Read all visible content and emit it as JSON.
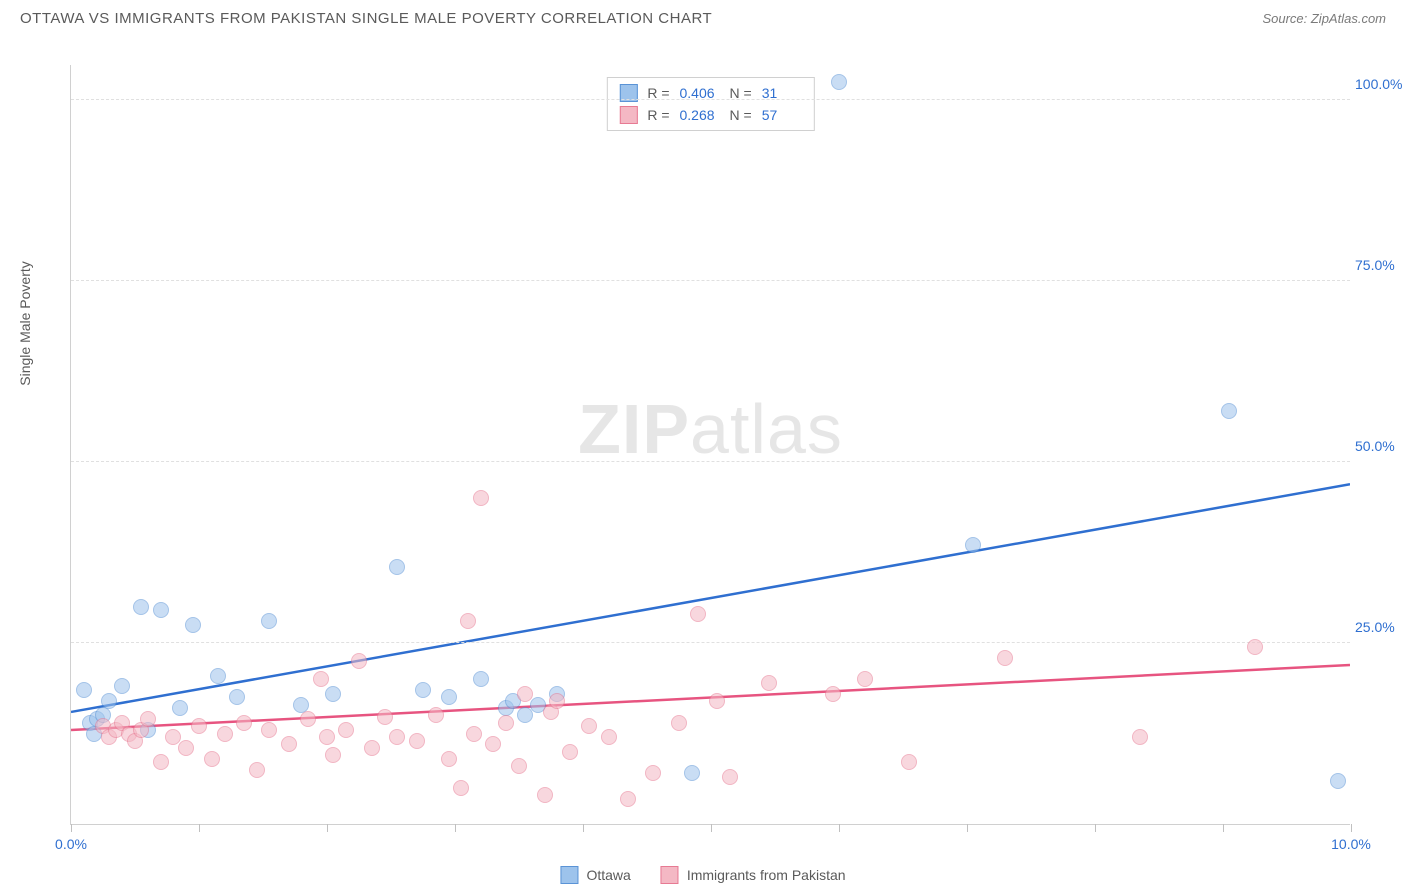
{
  "header": {
    "title": "OTTAWA VS IMMIGRANTS FROM PAKISTAN SINGLE MALE POVERTY CORRELATION CHART",
    "source": "Source: ZipAtlas.com"
  },
  "watermark": {
    "zip": "ZIP",
    "atlas": "atlas"
  },
  "chart": {
    "type": "scatter",
    "y_label": "Single Male Poverty",
    "xlim": [
      0,
      10
    ],
    "ylim": [
      0,
      105
    ],
    "xtick_positions": [
      0,
      1,
      2,
      3,
      4,
      5,
      6,
      7,
      8,
      9,
      10
    ],
    "xtick_labels": {
      "0": "0.0%",
      "10": "10.0%"
    },
    "xtick_label_color": "#2f6fd0",
    "ytick_positions": [
      25,
      50,
      75,
      100
    ],
    "ytick_labels": [
      "25.0%",
      "50.0%",
      "75.0%",
      "100.0%"
    ],
    "ytick_label_color": "#2f6fd0",
    "grid_color": "#e0e0e0",
    "background_color": "#ffffff",
    "point_radius": 8,
    "point_opacity": 0.55,
    "series": [
      {
        "name": "Ottawa",
        "fill_color": "#9dc3ec",
        "stroke_color": "#5a93d6",
        "line_color": "#2f6fd0",
        "r_value": "0.406",
        "n_value": "31",
        "trend": {
          "x1": 0,
          "y1": 15.5,
          "x2": 10,
          "y2": 47.0
        },
        "points": [
          [
            0.1,
            18.5
          ],
          [
            0.15,
            14.0
          ],
          [
            0.18,
            12.5
          ],
          [
            0.2,
            14.5
          ],
          [
            0.25,
            15.0
          ],
          [
            0.3,
            17.0
          ],
          [
            0.4,
            19.0
          ],
          [
            0.55,
            30.0
          ],
          [
            0.7,
            29.5
          ],
          [
            0.85,
            16.0
          ],
          [
            0.95,
            27.5
          ],
          [
            1.15,
            20.5
          ],
          [
            1.3,
            17.5
          ],
          [
            1.55,
            28.0
          ],
          [
            1.8,
            16.5
          ],
          [
            2.05,
            18.0
          ],
          [
            2.55,
            35.5
          ],
          [
            2.75,
            18.5
          ],
          [
            2.95,
            17.5
          ],
          [
            3.2,
            20.0
          ],
          [
            3.4,
            16.0
          ],
          [
            3.45,
            17.0
          ],
          [
            3.55,
            15.0
          ],
          [
            3.65,
            16.5
          ],
          [
            3.8,
            18.0
          ],
          [
            4.85,
            7.0
          ],
          [
            6.0,
            102.5
          ],
          [
            7.05,
            38.5
          ],
          [
            9.05,
            57.0
          ],
          [
            9.9,
            6.0
          ],
          [
            0.6,
            13.0
          ]
        ]
      },
      {
        "name": "Immigrants from Pakistan",
        "fill_color": "#f4b8c4",
        "stroke_color": "#e77a93",
        "line_color": "#e75480",
        "r_value": "0.268",
        "n_value": "57",
        "trend": {
          "x1": 0,
          "y1": 13.0,
          "x2": 10,
          "y2": 22.0
        },
        "points": [
          [
            0.25,
            13.5
          ],
          [
            0.3,
            12.0
          ],
          [
            0.35,
            13.0
          ],
          [
            0.4,
            14.0
          ],
          [
            0.45,
            12.5
          ],
          [
            0.5,
            11.5
          ],
          [
            0.55,
            13.0
          ],
          [
            0.6,
            14.5
          ],
          [
            0.7,
            8.5
          ],
          [
            0.8,
            12.0
          ],
          [
            0.9,
            10.5
          ],
          [
            1.0,
            13.5
          ],
          [
            1.1,
            9.0
          ],
          [
            1.2,
            12.5
          ],
          [
            1.35,
            14.0
          ],
          [
            1.45,
            7.5
          ],
          [
            1.55,
            13.0
          ],
          [
            1.7,
            11.0
          ],
          [
            1.85,
            14.5
          ],
          [
            1.95,
            20.0
          ],
          [
            2.05,
            9.5
          ],
          [
            2.15,
            13.0
          ],
          [
            2.25,
            22.5
          ],
          [
            2.35,
            10.5
          ],
          [
            2.45,
            14.8
          ],
          [
            2.55,
            12.0
          ],
          [
            2.7,
            11.5
          ],
          [
            2.85,
            15.0
          ],
          [
            2.95,
            9.0
          ],
          [
            3.05,
            5.0
          ],
          [
            3.1,
            28.0
          ],
          [
            3.15,
            12.5
          ],
          [
            3.2,
            45.0
          ],
          [
            3.3,
            11.0
          ],
          [
            3.4,
            14.0
          ],
          [
            3.5,
            8.0
          ],
          [
            3.55,
            18.0
          ],
          [
            3.7,
            4.0
          ],
          [
            3.75,
            15.5
          ],
          [
            3.8,
            17.0
          ],
          [
            3.9,
            10.0
          ],
          [
            4.05,
            13.5
          ],
          [
            4.2,
            12.0
          ],
          [
            4.35,
            3.5
          ],
          [
            4.55,
            7.0
          ],
          [
            4.75,
            14.0
          ],
          [
            4.9,
            29.0
          ],
          [
            5.05,
            17.0
          ],
          [
            5.15,
            6.5
          ],
          [
            5.45,
            19.5
          ],
          [
            5.95,
            18.0
          ],
          [
            6.2,
            20.0
          ],
          [
            6.55,
            8.5
          ],
          [
            7.3,
            23.0
          ],
          [
            8.35,
            12.0
          ],
          [
            9.25,
            24.5
          ],
          [
            2.0,
            12.0
          ]
        ]
      }
    ],
    "legend_labels": {
      "r_prefix": "R  =",
      "n_prefix": "N  ="
    }
  }
}
